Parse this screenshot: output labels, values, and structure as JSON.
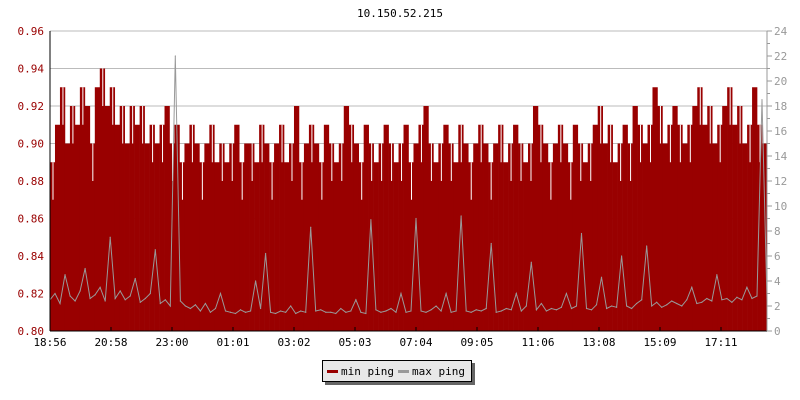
{
  "chart_data": {
    "type": "area",
    "title": "10.150.52.215",
    "x_tick_labels": [
      "18:56",
      "20:58",
      "23:00",
      "01:01",
      "03:02",
      "05:03",
      "07:04",
      "09:05",
      "11:06",
      "13:08",
      "15:09",
      "17:11"
    ],
    "y_left": {
      "ylim": [
        0.8,
        0.96
      ],
      "ticks": [
        "0.80",
        "0.82",
        "0.84",
        "0.86",
        "0.88",
        "0.90",
        "0.92",
        "0.94",
        "0.96"
      ]
    },
    "y_right": {
      "ylim": [
        0,
        24
      ],
      "ticks": [
        "0",
        "2",
        "4",
        "6",
        "8",
        "10",
        "12",
        "14",
        "16",
        "18",
        "20",
        "22",
        "24"
      ]
    },
    "grid": true,
    "legend_position": "bottom",
    "series": [
      {
        "name": "min ping",
        "axis": "left",
        "color": "#990000",
        "values": [
          0.89,
          0.91,
          0.93,
          0.9,
          0.92,
          0.91,
          0.93,
          0.92,
          0.9,
          0.93,
          0.94,
          0.92,
          0.93,
          0.91,
          0.92,
          0.9,
          0.92,
          0.91,
          0.92,
          0.9,
          0.91,
          0.9,
          0.91,
          0.92,
          0.9,
          0.91,
          0.89,
          0.9,
          0.91,
          0.9,
          0.89,
          0.9,
          0.91,
          0.89,
          0.9,
          0.89,
          0.9,
          0.91,
          0.89,
          0.9,
          0.9,
          0.89,
          0.91,
          0.9,
          0.89,
          0.9,
          0.91,
          0.89,
          0.9,
          0.92,
          0.89,
          0.9,
          0.91,
          0.9,
          0.89,
          0.91,
          0.9,
          0.89,
          0.9,
          0.92,
          0.91,
          0.9,
          0.89,
          0.91,
          0.9,
          0.89,
          0.9,
          0.91,
          0.9,
          0.89,
          0.9,
          0.91,
          0.89,
          0.9,
          0.91,
          0.92,
          0.9,
          0.89,
          0.9,
          0.91,
          0.9,
          0.89,
          0.91,
          0.9,
          0.89,
          0.9,
          0.91,
          0.9,
          0.89,
          0.9,
          0.91,
          0.89,
          0.9,
          0.91,
          0.9,
          0.89,
          0.9,
          0.92,
          0.91,
          0.9,
          0.89,
          0.9,
          0.91,
          0.9,
          0.89,
          0.91,
          0.9,
          0.89,
          0.9,
          0.91,
          0.92,
          0.9,
          0.91,
          0.89,
          0.9,
          0.91,
          0.9,
          0.92,
          0.91,
          0.9,
          0.91,
          0.93,
          0.92,
          0.9,
          0.91,
          0.92,
          0.91,
          0.9,
          0.91,
          0.92,
          0.93,
          0.91,
          0.92,
          0.9,
          0.91,
          0.92,
          0.93,
          0.91,
          0.92,
          0.9,
          0.91,
          0.93,
          0.91,
          0.9
        ]
      },
      {
        "name": "max ping",
        "axis": "right",
        "color": "#999999",
        "values": [
          2.5,
          3.0,
          2.2,
          4.5,
          2.8,
          2.4,
          3.2,
          5.0,
          2.6,
          2.9,
          3.5,
          2.4,
          7.5,
          2.6,
          3.2,
          2.5,
          2.8,
          4.2,
          2.3,
          2.6,
          3.0,
          6.5,
          2.2,
          2.5,
          2.0,
          22.0,
          2.4,
          2.0,
          1.8,
          2.1,
          1.6,
          2.2,
          1.5,
          1.8,
          3.0,
          1.6,
          1.5,
          1.4,
          1.7,
          1.5,
          1.6,
          4.0,
          1.8,
          6.2,
          1.5,
          1.4,
          1.6,
          1.5,
          2.0,
          1.4,
          1.6,
          1.5,
          8.3,
          1.6,
          1.7,
          1.5,
          1.5,
          1.4,
          1.8,
          1.5,
          1.6,
          2.5,
          1.5,
          1.4,
          8.9,
          1.7,
          1.5,
          1.6,
          1.8,
          1.5,
          3.0,
          1.5,
          1.6,
          9.0,
          1.6,
          1.5,
          1.7,
          2.0,
          1.6,
          3.0,
          1.5,
          1.6,
          9.2,
          1.6,
          1.5,
          1.7,
          1.6,
          1.8,
          7.0,
          1.5,
          1.6,
          1.8,
          1.7,
          3.0,
          1.6,
          2.0,
          5.5,
          1.7,
          2.2,
          1.6,
          1.8,
          1.7,
          1.9,
          3.0,
          1.8,
          2.0,
          7.8,
          1.8,
          1.7,
          2.1,
          4.3,
          1.8,
          2.0,
          1.9,
          6.0,
          2.0,
          1.8,
          2.2,
          2.5,
          6.8,
          2.0,
          2.3,
          1.9,
          2.1,
          2.4,
          2.2,
          2.0,
          2.5,
          3.5,
          2.2,
          2.3,
          2.6,
          2.4,
          4.5,
          2.5,
          2.6,
          2.3,
          2.7,
          2.5,
          3.5,
          2.6,
          2.8,
          18.5,
          2.4
        ]
      }
    ]
  }
}
